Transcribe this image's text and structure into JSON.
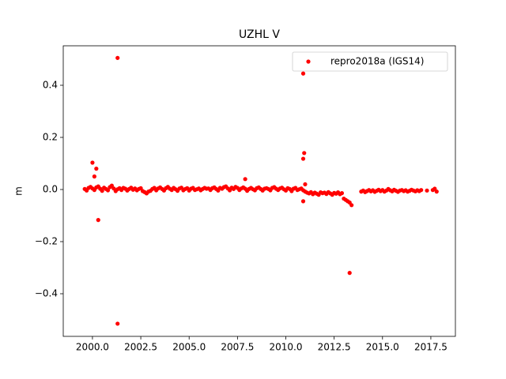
{
  "chart_data": {
    "type": "scatter",
    "title": "UZHL V",
    "y_label": "m",
    "xlim": [
      1998.49,
      2018.77
    ],
    "ylim": [
      -0.5636,
      0.5515
    ],
    "xticks": [
      {
        "value": 2000,
        "label": "2000.0"
      },
      {
        "value": 2002.5,
        "label": "2002.5"
      },
      {
        "value": 2005,
        "label": "2005.0"
      },
      {
        "value": 2007.5,
        "label": "2007.5"
      },
      {
        "value": 2010,
        "label": "2010.0"
      },
      {
        "value": 2012.5,
        "label": "2012.5"
      },
      {
        "value": 2015,
        "label": "2015.0"
      },
      {
        "value": 2017.5,
        "label": "2017.5"
      }
    ],
    "yticks": [
      {
        "value": -0.4,
        "label": "−0.4"
      },
      {
        "value": -0.2,
        "label": "−0.2"
      },
      {
        "value": 0,
        "label": "0.0"
      },
      {
        "value": 0.2,
        "label": "0.2"
      },
      {
        "value": 0.4,
        "label": "0.4"
      }
    ],
    "legend_position": "upper right",
    "x": [
      1999.6,
      1999.7,
      1999.8,
      1999.9,
      2000.0,
      2000.1,
      2000.2,
      2000.3,
      2000.4,
      2000.5,
      2000.6,
      2000.7,
      2000.8,
      2000.9,
      2001.0,
      2001.1,
      2001.2,
      2001.3,
      2001.4,
      2001.5,
      2001.6,
      2001.7,
      2001.8,
      2001.9,
      2002.0,
      2002.1,
      2002.2,
      2002.3,
      2002.4,
      2002.5,
      2002.6,
      2002.7,
      2002.8,
      2002.9,
      2003.0,
      2003.1,
      2003.2,
      2003.3,
      2003.4,
      2003.5,
      2003.6,
      2003.7,
      2003.8,
      2003.9,
      2004.0,
      2004.1,
      2004.2,
      2004.3,
      2004.4,
      2004.5,
      2004.6,
      2004.7,
      2004.8,
      2004.9,
      2005.0,
      2005.1,
      2005.2,
      2005.3,
      2005.4,
      2005.5,
      2005.6,
      2005.7,
      2005.8,
      2005.9,
      2006.0,
      2006.1,
      2006.2,
      2006.3,
      2006.4,
      2006.5,
      2006.6,
      2006.7,
      2006.8,
      2006.9,
      2007.0,
      2007.1,
      2007.2,
      2007.3,
      2007.4,
      2007.5,
      2007.6,
      2007.7,
      2007.8,
      2007.9,
      2008.0,
      2008.1,
      2008.2,
      2008.3,
      2008.4,
      2008.5,
      2008.6,
      2008.7,
      2008.8,
      2008.9,
      2009.0,
      2009.1,
      2009.2,
      2009.3,
      2009.4,
      2009.5,
      2009.6,
      2009.7,
      2009.8,
      2009.9,
      2010.0,
      2010.1,
      2010.2,
      2010.3,
      2010.4,
      2010.5,
      2010.6,
      2010.7,
      2010.8,
      2010.9,
      2011.0,
      2011.1,
      2011.2,
      2011.3,
      2011.4,
      2011.5,
      2011.6,
      2011.7,
      2011.8,
      2011.9,
      2012.0,
      2012.1,
      2012.2,
      2012.3,
      2012.4,
      2012.5,
      2012.6,
      2012.7,
      2012.8,
      2012.9,
      2013.0,
      2013.1,
      2013.2,
      2013.3,
      2013.4,
      2013.9,
      2014.0,
      2014.1,
      2014.2,
      2014.3,
      2014.4,
      2014.5,
      2014.6,
      2014.7,
      2014.8,
      2014.9,
      2015.0,
      2015.1,
      2015.2,
      2015.3,
      2015.4,
      2015.5,
      2015.6,
      2015.7,
      2015.8,
      2015.9,
      2016.0,
      2016.1,
      2016.2,
      2016.3,
      2016.4,
      2016.5,
      2016.6,
      2016.7,
      2016.8,
      2016.9,
      2017.0,
      2017.3,
      2017.6,
      2017.7,
      2017.8,
      2001.3,
      2001.3,
      2010.9,
      2010.95,
      2010.9,
      2000.0,
      2000.2,
      2000.3,
      2000.1,
      2007.9,
      2013.3,
      2011.0,
      2010.9
    ],
    "series": [
      {
        "name": "repro2018a (IGS14)",
        "color": "#ff0000",
        "values": [
          0.002,
          -0.004,
          0.006,
          0.01,
          0.004,
          -0.002,
          0.008,
          0.012,
          0.003,
          -0.005,
          0.007,
          0.002,
          -0.003,
          0.009,
          0.015,
          0.004,
          -0.006,
          0.001,
          0.005,
          -0.002,
          0.006,
          0.003,
          -0.004,
          0.002,
          0.007,
          -0.001,
          0.004,
          -0.003,
          0.002,
          0.005,
          -0.006,
          -0.01,
          -0.015,
          -0.008,
          -0.005,
          0.002,
          0.006,
          -0.003,
          0.004,
          0.008,
          0.002,
          -0.004,
          0.005,
          0.01,
          0.003,
          -0.002,
          0.006,
          0.001,
          -0.005,
          0.004,
          0.007,
          -0.003,
          0.002,
          0.005,
          -0.004,
          0.003,
          0.006,
          -0.002,
          0.001,
          0.004,
          -0.003,
          0.002,
          0.006,
          0.003,
          0.004,
          -0.002,
          0.005,
          0.008,
          0.002,
          -0.004,
          0.006,
          0.003,
          0.009,
          0.012,
          0.004,
          -0.003,
          0.007,
          0.002,
          0.01,
          0.006,
          -0.002,
          0.004,
          0.008,
          0.003,
          -0.005,
          0.002,
          0.006,
          0.001,
          -0.003,
          0.005,
          0.008,
          0.002,
          -0.004,
          0.003,
          0.005,
          0.002,
          -0.003,
          0.006,
          0.009,
          0.003,
          -0.002,
          0.004,
          0.007,
          0.001,
          -0.004,
          0.005,
          0.002,
          -0.006,
          0.003,
          0.006,
          -0.002,
          0.001,
          0.004,
          -0.003,
          -0.008,
          -0.012,
          -0.015,
          -0.01,
          -0.018,
          -0.012,
          -0.016,
          -0.02,
          -0.011,
          -0.014,
          -0.012,
          -0.017,
          -0.01,
          -0.015,
          -0.02,
          -0.013,
          -0.016,
          -0.011,
          -0.018,
          -0.014,
          -0.035,
          -0.04,
          -0.045,
          -0.05,
          -0.06,
          -0.008,
          -0.004,
          -0.01,
          -0.006,
          -0.002,
          -0.007,
          -0.003,
          -0.009,
          -0.005,
          -0.001,
          -0.006,
          -0.002,
          -0.008,
          -0.004,
          0.002,
          -0.003,
          -0.007,
          -0.001,
          -0.005,
          -0.009,
          -0.004,
          -0.002,
          -0.006,
          -0.003,
          -0.008,
          -0.005,
          -0.001,
          -0.004,
          -0.007,
          -0.003,
          -0.006,
          -0.002,
          -0.004,
          -0.002,
          0.003,
          -0.008,
          0.505,
          -0.515,
          0.445,
          0.14,
          0.118,
          0.103,
          0.08,
          -0.117,
          0.05,
          0.04,
          -0.32,
          0.02,
          -0.045
        ]
      }
    ]
  }
}
